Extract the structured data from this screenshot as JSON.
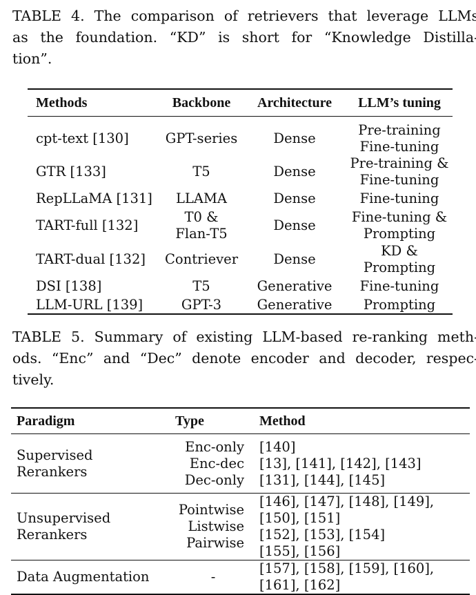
{
  "table4": {
    "caption_lines": [
      "TABLE 4. The comparison of retrievers that leverage LLMs",
      "as the foundation. “KD” is short for “Knowledge Distilla-",
      "tion”."
    ],
    "headers": [
      "Methods",
      "Backbone",
      "Architecture",
      "LLM’s tuning"
    ],
    "rows": [
      {
        "method": "cpt-text [130]",
        "backbone": [
          "GPT-series"
        ],
        "architecture": "Dense",
        "tuning": [
          "Pre-training",
          "Fine-tuning"
        ]
      },
      {
        "method": "GTR [133]",
        "backbone": [
          "T5"
        ],
        "architecture": "Dense",
        "tuning": [
          "Pre-training &",
          "Fine-tuning"
        ]
      },
      {
        "method": "RepLLaMA [131]",
        "backbone": [
          "LLAMA"
        ],
        "architecture": "Dense",
        "tuning": [
          "Fine-tuning"
        ]
      },
      {
        "method": "TART-full [132]",
        "backbone": [
          "T0 &",
          "Flan-T5"
        ],
        "architecture": "Dense",
        "tuning": [
          "Fine-tuning &",
          "Prompting"
        ]
      },
      {
        "method": "TART-dual [132]",
        "backbone": [
          "Contriever"
        ],
        "architecture": "Dense",
        "tuning": [
          "KD &",
          "Prompting"
        ]
      },
      {
        "method": "DSI [138]",
        "backbone": [
          "T5"
        ],
        "architecture": "Generative",
        "tuning": [
          "Fine-tuning"
        ]
      },
      {
        "method": "LLM-URL [139]",
        "backbone": [
          "GPT-3"
        ],
        "architecture": "Generative",
        "tuning": [
          "Prompting"
        ]
      }
    ]
  },
  "table5": {
    "caption_lines": [
      "TABLE 5. Summary of existing LLM-based re-ranking meth-",
      "ods. “Enc” and “Dec” denote encoder and decoder, respec-",
      "tively."
    ],
    "headers": [
      "Paradigm",
      "Type",
      "Method"
    ],
    "groups": [
      {
        "paradigm": [
          "Supervised",
          "Rerankers"
        ],
        "types": [
          "Enc-only",
          "Enc-dec",
          "Dec-only"
        ],
        "methods": [
          "[140]",
          "[13], [141], [142], [143]",
          "[131], [144], [145]"
        ]
      },
      {
        "paradigm": [
          "Unsupervised",
          "Rerankers"
        ],
        "types": [
          "Pointwise",
          "Listwise",
          "Pairwise"
        ],
        "methods": [
          "[146], [147], [148], [149], [150], [151]",
          "[152], [153], [154]",
          "[155], [156]"
        ]
      },
      {
        "paradigm": [
          "Data Augmentation"
        ],
        "types": [
          "-"
        ],
        "methods": [
          "[157], [158], [159], [160], [161], [162]"
        ]
      }
    ]
  }
}
